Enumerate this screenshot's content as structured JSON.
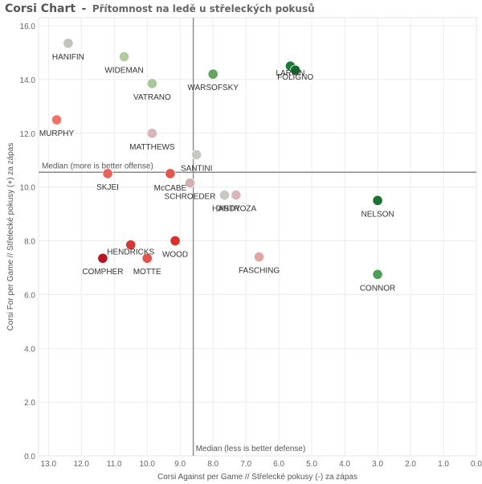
{
  "title": "Corsi Chart",
  "title_separator": "-",
  "subtitle": "Přítomnost na ledě u střeleckých pokusů",
  "chart_data": {
    "type": "scatter",
    "xlabel": "Corsi Against per Game // Střelecké pokusy (-) za zápas",
    "ylabel": "Corsi For per Game // Střelecké pokusy (+) za zápas",
    "xlim": [
      13.3,
      0.0
    ],
    "ylim": [
      0.0,
      16.3
    ],
    "x_reversed": true,
    "x_ticks": [
      "13.0",
      "12.0",
      "11.0",
      "10.0",
      "9.0",
      "8.0",
      "7.0",
      "6.0",
      "5.0",
      "4.0",
      "3.0",
      "2.0",
      "1.0",
      "0.0"
    ],
    "x_tick_values": [
      13,
      12,
      11,
      10,
      9,
      8,
      7,
      6,
      5,
      4,
      3,
      2,
      1,
      0
    ],
    "y_ticks": [
      "0.0",
      "2.0",
      "4.0",
      "6.0",
      "8.0",
      "10.0",
      "12.0",
      "14.0",
      "16.0"
    ],
    "y_tick_values": [
      0,
      2,
      4,
      6,
      8,
      10,
      12,
      14,
      16
    ],
    "grid": true,
    "median_x": 8.6,
    "median_y": 10.55,
    "median_x_label": "Median (less is better defense)",
    "median_y_label": "Median (more is better offense)",
    "points": [
      {
        "label": "HANIFIN",
        "x": 12.4,
        "y": 15.35,
        "color": "#c2c5be"
      },
      {
        "label": "WIDEMAN",
        "x": 10.7,
        "y": 14.85,
        "color": "#b2cca0"
      },
      {
        "label": "VATRANO",
        "x": 9.85,
        "y": 13.85,
        "color": "#a8c79a"
      },
      {
        "label": "WARSOFSKY",
        "x": 8.0,
        "y": 14.2,
        "color": "#62a55e"
      },
      {
        "label": "LARKIN",
        "x": 5.65,
        "y": 14.5,
        "color": "#1e7a34"
      },
      {
        "label": "FOLIGNO",
        "x": 5.5,
        "y": 14.35,
        "color": "#176b2c"
      },
      {
        "label": "MURPHY",
        "x": 12.75,
        "y": 12.5,
        "color": "#ef7369"
      },
      {
        "label": "MATTHEWS",
        "x": 9.85,
        "y": 12.0,
        "color": "#d9b7b7"
      },
      {
        "label": "SANTINI",
        "x": 8.5,
        "y": 11.2,
        "color": "#c7c9c0"
      },
      {
        "label": "SKJEI",
        "x": 11.2,
        "y": 10.5,
        "color": "#e86359"
      },
      {
        "label": "McCABE",
        "x": 9.3,
        "y": 10.5,
        "color": "#e2564c"
      },
      {
        "label": "SCHROEDER",
        "x": 8.7,
        "y": 10.15,
        "color": "#d3b1b0"
      },
      {
        "label": "HARDY",
        "x": 7.65,
        "y": 9.7,
        "color": "#c7c9c0"
      },
      {
        "label": "DISTROZA",
        "x": 7.3,
        "y": 9.7,
        "color": "#d9b7b7"
      },
      {
        "label": "NELSON",
        "x": 3.0,
        "y": 9.5,
        "color": "#1a7232"
      },
      {
        "label": "WOOD",
        "x": 9.15,
        "y": 8.0,
        "color": "#d8312b"
      },
      {
        "label": "HENDRICKS",
        "x": 10.5,
        "y": 7.85,
        "color": "#d33a31"
      },
      {
        "label": "COMPHER",
        "x": 11.35,
        "y": 7.35,
        "color": "#b81424"
      },
      {
        "label": "MOTTE",
        "x": 10.0,
        "y": 7.35,
        "color": "#e5544a"
      },
      {
        "label": "FASCHING",
        "x": 6.6,
        "y": 7.4,
        "color": "#e2a6a2"
      },
      {
        "label": "CONNOR",
        "x": 3.0,
        "y": 6.75,
        "color": "#4f9e57"
      }
    ]
  },
  "colors": {
    "grid": "#ececec",
    "axis_tick_text": "#666666",
    "median_line": "#8a8a8a",
    "point_label": "#333333"
  }
}
